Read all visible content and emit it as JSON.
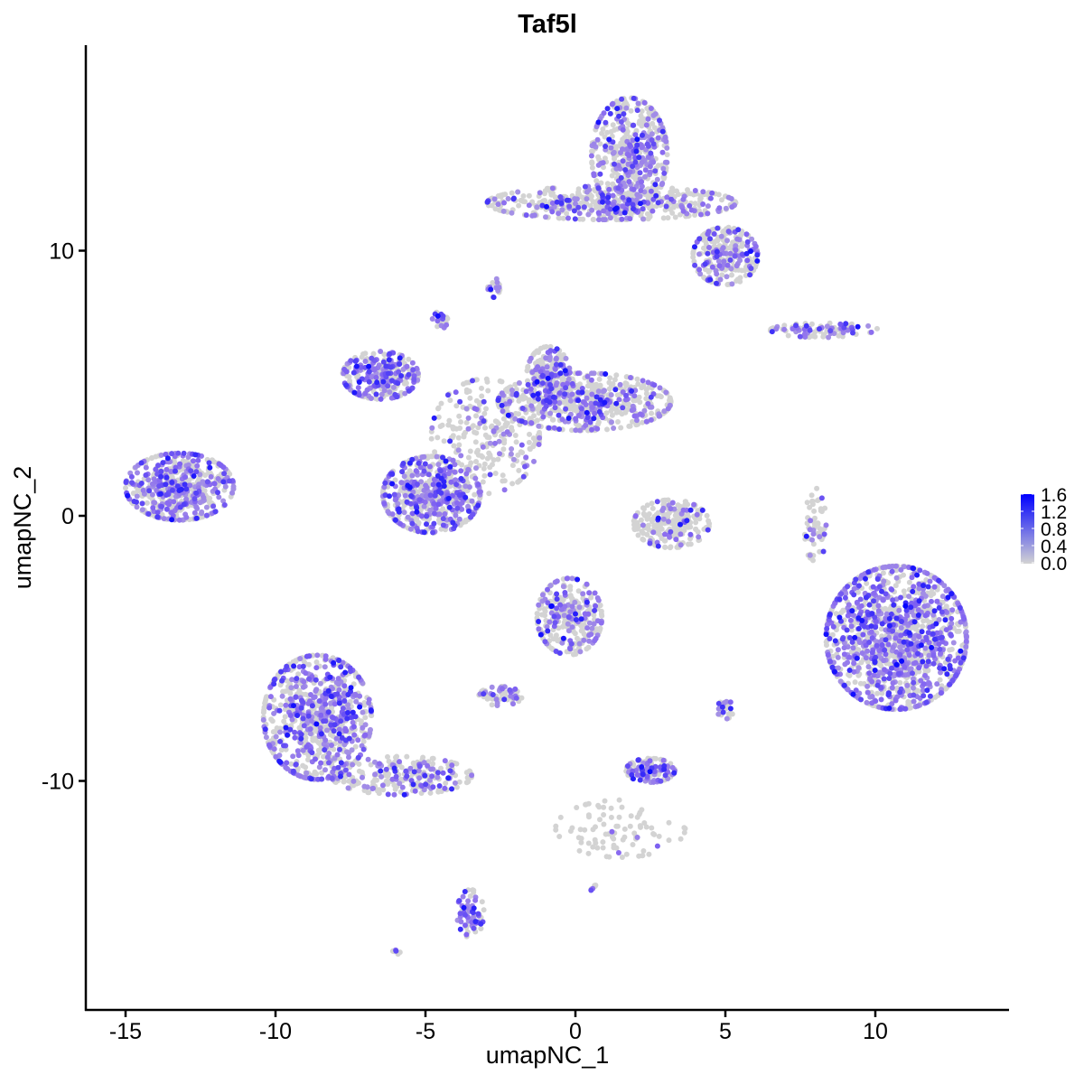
{
  "chart_data": {
    "type": "scatter",
    "title": "Taf5l",
    "xlabel": "umapNC_1",
    "ylabel": "umapNC_2",
    "xlim": [
      -16.3,
      14.5
    ],
    "ylim": [
      -18.6,
      17.8
    ],
    "xticks": [
      -15,
      -10,
      -5,
      0,
      5,
      10
    ],
    "xtick_labels": [
      "-15",
      "-10",
      "-5",
      "0",
      "5",
      "10"
    ],
    "yticks": [
      -10,
      0,
      10
    ],
    "ytick_labels": [
      "-10",
      "0",
      "10"
    ],
    "grid": false,
    "legend": {
      "placement": "right",
      "type": "colorbar",
      "range": [
        0,
        1.6
      ],
      "tick_labels": [
        "0.0",
        "0.4",
        "0.8",
        "1.2",
        "1.6"
      ],
      "low_color": "#d3d3d3",
      "high_color": "#0000ff"
    },
    "clusters": [
      {
        "center": [
          -13.2,
          1.1
        ],
        "spread": [
          1.0,
          0.7
        ],
        "n": 550,
        "expr_frac": 0.5
      },
      {
        "center": [
          1.8,
          13.6
        ],
        "spread": [
          0.7,
          1.2
        ],
        "n": 500,
        "expr_frac": 0.35
      },
      {
        "center": [
          1.2,
          11.8
        ],
        "spread": [
          2.3,
          0.35
        ],
        "n": 500,
        "expr_frac": 0.3
      },
      {
        "center": [
          5.0,
          9.8
        ],
        "spread": [
          0.6,
          0.6
        ],
        "n": 250,
        "expr_frac": 0.35
      },
      {
        "center": [
          -6.5,
          5.3
        ],
        "spread": [
          0.7,
          0.5
        ],
        "n": 300,
        "expr_frac": 0.5
      },
      {
        "center": [
          -4.8,
          0.8
        ],
        "spread": [
          0.9,
          0.8
        ],
        "n": 550,
        "expr_frac": 0.45
      },
      {
        "center": [
          0.3,
          4.3
        ],
        "spread": [
          1.6,
          0.6
        ],
        "n": 600,
        "expr_frac": 0.3
      },
      {
        "center": [
          -0.9,
          5.3
        ],
        "spread": [
          0.4,
          0.6
        ],
        "n": 200,
        "expr_frac": 0.35
      },
      {
        "center": [
          -3.0,
          3.0
        ],
        "spread": [
          1.0,
          1.2
        ],
        "n": 250,
        "expr_frac": 0.2
      },
      {
        "center": [
          -4.5,
          7.4
        ],
        "spread": [
          0.15,
          0.2
        ],
        "n": 25,
        "expr_frac": 0.5
      },
      {
        "center": [
          10.7,
          -4.6
        ],
        "spread": [
          1.3,
          1.5
        ],
        "n": 1300,
        "expr_frac": 0.5
      },
      {
        "center": [
          -8.6,
          -7.6
        ],
        "spread": [
          1.0,
          1.3
        ],
        "n": 800,
        "expr_frac": 0.45
      },
      {
        "center": [
          -5.8,
          -9.8
        ],
        "spread": [
          1.3,
          0.4
        ],
        "n": 250,
        "expr_frac": 0.35
      },
      {
        "center": [
          -3.5,
          -15.0
        ],
        "spread": [
          0.25,
          0.5
        ],
        "n": 80,
        "expr_frac": 0.5
      },
      {
        "center": [
          -0.2,
          -3.8
        ],
        "spread": [
          0.6,
          0.8
        ],
        "n": 300,
        "expr_frac": 0.3
      },
      {
        "center": [
          -2.5,
          -6.8
        ],
        "spread": [
          0.4,
          0.2
        ],
        "n": 60,
        "expr_frac": 0.4
      },
      {
        "center": [
          3.2,
          -0.3
        ],
        "spread": [
          0.7,
          0.5
        ],
        "n": 250,
        "expr_frac": 0.15
      },
      {
        "center": [
          2.5,
          -9.6
        ],
        "spread": [
          0.45,
          0.25
        ],
        "n": 130,
        "expr_frac": 0.5
      },
      {
        "center": [
          8.3,
          7.0
        ],
        "spread": [
          1.0,
          0.15
        ],
        "n": 90,
        "expr_frac": 0.5
      },
      {
        "center": [
          8.0,
          -0.4
        ],
        "spread": [
          0.2,
          0.8
        ],
        "n": 60,
        "expr_frac": 0.1
      },
      {
        "center": [
          1.5,
          -11.8
        ],
        "spread": [
          1.2,
          0.6
        ],
        "n": 90,
        "expr_frac": 0.05
      },
      {
        "center": [
          5.0,
          -7.3
        ],
        "spread": [
          0.15,
          0.2
        ],
        "n": 25,
        "expr_frac": 0.4
      },
      {
        "center": [
          0.6,
          -14.0
        ],
        "spread": [
          0.08,
          0.08
        ],
        "n": 6,
        "expr_frac": 0.5
      },
      {
        "center": [
          -6.0,
          -16.4
        ],
        "spread": [
          0.1,
          0.08
        ],
        "n": 6,
        "expr_frac": 0.5
      },
      {
        "center": [
          -2.7,
          8.6
        ],
        "spread": [
          0.12,
          0.2
        ],
        "n": 20,
        "expr_frac": 0.4
      }
    ]
  }
}
